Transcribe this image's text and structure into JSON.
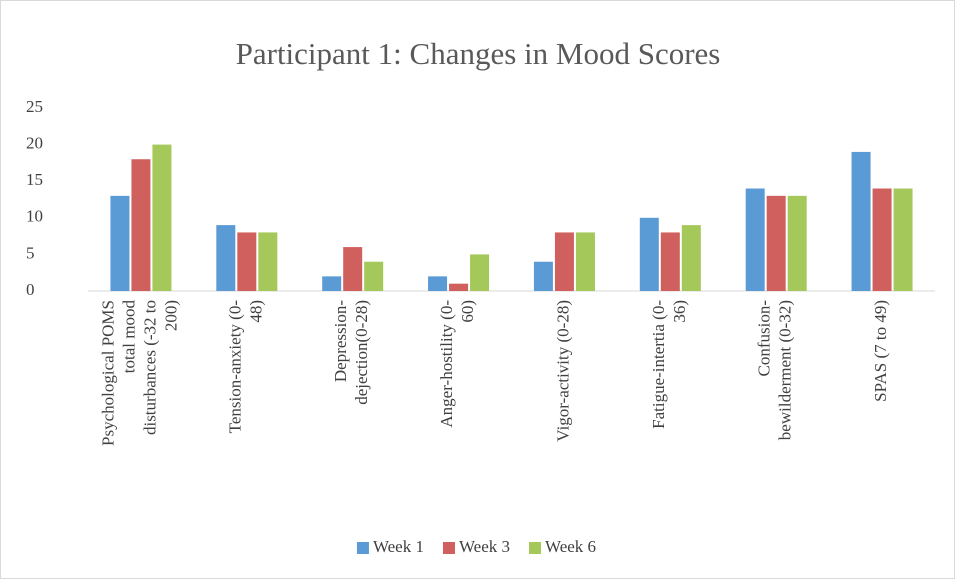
{
  "chart_data": {
    "type": "bar",
    "title": "Participant 1: Changes in Mood Scores",
    "categories": [
      "Psychological POMS total mood disturbances (-32 to 200)",
      "Tension-anxiety (0-48)",
      "Depression-dejection(0-28)",
      "Anger-hostility (0-60)",
      "Vigor-activity (0-28)",
      "Fatigue-intertia (0-36)",
      "Confusion-bewilderment (0-32)",
      "SPAS (7 to 49)"
    ],
    "series": [
      {
        "name": "Week 1",
        "color": "#5b9bd5",
        "values": [
          13,
          9,
          2,
          2,
          4,
          10,
          14,
          19
        ]
      },
      {
        "name": "Week 3",
        "color": "#d0605e",
        "values": [
          18,
          8,
          6,
          1,
          8,
          8,
          13,
          14
        ]
      },
      {
        "name": "Week 6",
        "color": "#a5c85a",
        "values": [
          20,
          8,
          4,
          5,
          8,
          9,
          13,
          14
        ]
      }
    ],
    "ylim": [
      0,
      25
    ],
    "yticks": [
      0,
      5,
      10,
      15,
      20,
      25
    ],
    "grid": false,
    "legend": "bottom"
  }
}
